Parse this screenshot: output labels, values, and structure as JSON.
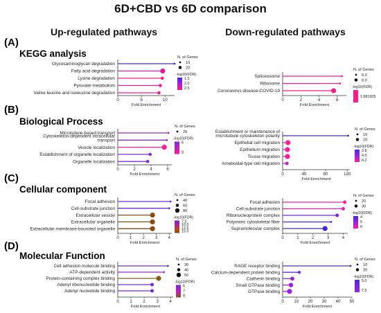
{
  "figure": {
    "title": "6D+CBD vs 6D comparison",
    "left_heading": "Up-regulated pathways",
    "right_heading": "Down-regulated pathways"
  },
  "sections": [
    {
      "label": "(A)",
      "title": "KEGG  analysis"
    },
    {
      "label": "(B)",
      "title": "Biological Process"
    },
    {
      "label": "(C)",
      "title": "Cellular component"
    },
    {
      "label": "(D)",
      "title": "Molecular Function"
    }
  ],
  "chart_data": [
    {
      "type": "lollipop",
      "section": "(A)",
      "side": "up",
      "xlabel": "Fold Enrichment",
      "xlim": [
        0,
        12
      ],
      "xticks": [
        0,
        5,
        10
      ],
      "categories": [
        "Glycosaminoglycan degradation",
        "Fatty acid degradation",
        "Lysine degradation",
        "Pyruvate metabolism",
        "Valine leucine and isoleucine degradation"
      ],
      "values": [
        12.0,
        9.5,
        9.4,
        9.0,
        8.7
      ],
      "genes": [
        10,
        15,
        12,
        12,
        12
      ],
      "fdr": [
        1.5,
        2.2,
        2.4,
        2.3,
        2.3
      ],
      "size_legend": {
        "title": "N. of Genes",
        "values": [
          10,
          20
        ]
      },
      "color_legend": {
        "title": "-log10(FDR)",
        "labels": [
          "1.5",
          "2.0",
          "2.5"
        ],
        "colors": [
          "#3b2be0",
          "#b01ee0",
          "#ff1a7a"
        ]
      }
    },
    {
      "type": "lollipop",
      "section": "(A)",
      "side": "down",
      "xlabel": "Fold Enrichment",
      "xlim": [
        0,
        7
      ],
      "xticks": [
        0,
        2,
        4,
        6
      ],
      "categories": [
        "Spliceosome",
        "Ribosome",
        "Coronavirus disease-COVID-19"
      ],
      "values": [
        6.5,
        6.3,
        5.6
      ],
      "genes": [
        6,
        6,
        8
      ],
      "fdr": [
        1.98,
        1.98,
        1.98
      ],
      "size_legend": {
        "title": "N. of Genes",
        "values": [
          "6.0",
          "8.0"
        ]
      },
      "color_legend": {
        "title": "-log10(FDR)",
        "labels": [
          "1.981905"
        ],
        "colors": [
          "#ff1a8c",
          "#ff1a8c"
        ]
      }
    },
    {
      "type": "lollipop",
      "section": "(B)",
      "side": "up",
      "xlabel": "Fold Enrichment",
      "xlim": [
        0,
        6.5
      ],
      "xticks": [
        0,
        2,
        4,
        6
      ],
      "categories": [
        "Microtubule-based transport",
        "Cytoskeleton-dependent intracellular transport",
        "Vesicle localization",
        "Establishment of organelle localization",
        "Organelle localization"
      ],
      "values": [
        6.1,
        5.9,
        5.6,
        3.9,
        3.6
      ],
      "genes": [
        20,
        20,
        25,
        22,
        22
      ],
      "fdr": [
        6.5,
        6.5,
        7.5,
        6.2,
        6.2
      ],
      "size_legend": {
        "title": "N. of Genes",
        "values": [
          25
        ]
      },
      "color_legend": {
        "title": "-log10(FDR)",
        "labels": [
          "6",
          "8"
        ],
        "colors": [
          "#7b2be0",
          "#ff1a9c"
        ]
      }
    },
    {
      "type": "lollipop",
      "section": "(B)",
      "side": "down",
      "xlabel": "Fold Enrichment",
      "xlim": [
        0,
        125
      ],
      "xticks": [
        0,
        40,
        80,
        120
      ],
      "categories": [
        "Establishment or maintenance of microtubule cytoskeleton polarity",
        "Epithelial cell migration",
        "Epithelium migration",
        "Tissue migration",
        "Ameboidal-type cell migration"
      ],
      "values": [
        122,
        10,
        9,
        9,
        8
      ],
      "genes": [
        10,
        14,
        14,
        14,
        12
      ],
      "fdr": [
        3.8,
        4.2,
        4.2,
        4.2,
        4.1
      ],
      "size_legend": {
        "title": "N. of Genes",
        "values": [
          10,
          20
        ]
      },
      "color_legend": {
        "title": "-log10(FDR)",
        "labels": [
          "3.8",
          "4.0",
          "4.2"
        ],
        "colors": [
          "#3b2be0",
          "#a020e0",
          "#ff1aa0"
        ]
      }
    },
    {
      "type": "lollipop",
      "section": "(C)",
      "side": "up",
      "xlabel": "Fold Enrichment",
      "xlim": [
        0,
        4.2
      ],
      "xticks": [
        0,
        1,
        2,
        3,
        4
      ],
      "categories": [
        "Focal adhesion",
        "Cell-substrate junction",
        "Extracellular vesicle",
        "Extracellular organelle",
        "Extracellular membrane-bounded organelle"
      ],
      "values": [
        4.1,
        4.0,
        2.7,
        2.7,
        2.7
      ],
      "genes": [
        40,
        40,
        80,
        80,
        80
      ],
      "fdr": [
        7.5,
        7.5,
        15,
        15,
        15
      ],
      "size_legend": {
        "title": "N. of Genes",
        "values": [
          40,
          60,
          80
        ]
      },
      "color_legend": {
        "title": "-log10(FDR)",
        "labels": [
          "7.5",
          "10.0",
          "12.5",
          "15.0"
        ],
        "colors": [
          "#6a2be0",
          "#b01ea0",
          "#c04a20",
          "#8a4a10"
        ]
      }
    },
    {
      "type": "lollipop",
      "section": "(C)",
      "side": "down",
      "xlabel": "Fold Enrichment",
      "xlim": [
        0,
        4.3
      ],
      "xticks": [
        0,
        1,
        2,
        3,
        4
      ],
      "categories": [
        "Focal adhesion",
        "Cell-substrate junction",
        "Ribonucleoprotein complex",
        "Polymeric cytoskeletal fiber",
        "Supramolecular complex"
      ],
      "values": [
        4.1,
        4.0,
        3.6,
        3.2,
        2.8
      ],
      "genes": [
        25,
        25,
        25,
        22,
        28
      ],
      "fdr": [
        6,
        6,
        5,
        4.5,
        4.5
      ],
      "size_legend": {
        "title": "N. of Genes",
        "values": [
          20,
          30
        ]
      },
      "color_legend": {
        "title": "-log10(FDR)",
        "labels": [
          "4",
          "5",
          "6"
        ],
        "colors": [
          "#3b2be0",
          "#a020e0",
          "#ff1aa0"
        ]
      }
    },
    {
      "type": "lollipop",
      "section": "(D)",
      "side": "up",
      "xlabel": "Fold Enrichment",
      "xlim": [
        0,
        4.2
      ],
      "xticks": [
        0,
        1,
        2,
        3,
        4
      ],
      "categories": [
        "Cell adhesion molecule binding",
        "ATP-dependent activity",
        "Protein-containing complex binding",
        "Adenyl ribonucleotide binding",
        "Adenyl nucleotide binding"
      ],
      "values": [
        3.8,
        3.5,
        3.1,
        2.6,
        2.6
      ],
      "genes": [
        30,
        30,
        50,
        40,
        40
      ],
      "fdr": [
        6,
        6.5,
        8,
        6.2,
        6.2
      ],
      "size_legend": {
        "title": "N. of Genes",
        "values": [
          30,
          40,
          50
        ]
      },
      "color_legend": {
        "title": "-log10(FDR)",
        "labels": [
          "6",
          "7",
          "8"
        ],
        "colors": [
          "#6a2be0",
          "#c020c0",
          "#8a5a10"
        ]
      }
    },
    {
      "type": "lollipop",
      "section": "(D)",
      "side": "down",
      "xlabel": "Fold Enrichment",
      "xlim": [
        0,
        50
      ],
      "xticks": [
        0,
        10,
        20,
        30,
        40,
        50
      ],
      "categories": [
        "RAGE receptor binding",
        "Calcium-dependent protein binding",
        "Cadherin binding",
        "Small GTPase binding",
        "GTPase binding"
      ],
      "values": [
        49,
        12,
        7,
        6,
        5
      ],
      "genes": [
        10,
        12,
        14,
        15,
        16
      ],
      "fdr": [
        5.0,
        6.0,
        7.0,
        7.5,
        7.5
      ],
      "size_legend": {
        "title": "N. of Genes",
        "values": [
          10,
          20
        ]
      },
      "color_legend": {
        "title": "-log10(FDR)",
        "labels": [
          "5.0",
          "7.5"
        ],
        "colors": [
          "#4b2be0",
          "#a020e0"
        ]
      }
    }
  ]
}
